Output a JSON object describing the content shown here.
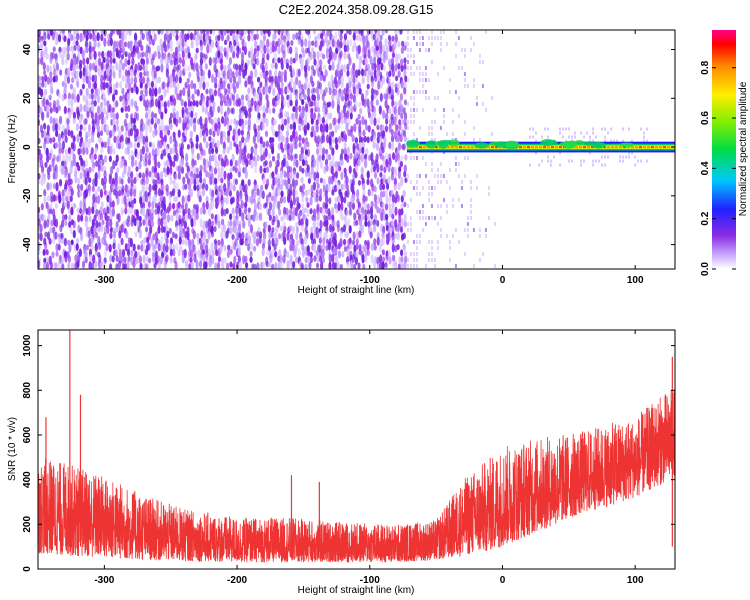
{
  "figure_title": "C2E2.2024.358.09.28.G15",
  "chart_data": [
    {
      "type": "heatmap",
      "title": "C2E2.2024.358.09.28.G15",
      "xlabel": "Height of straight line (km)",
      "ylabel": "Frequency (Hz)",
      "xlim": [
        -350,
        130
      ],
      "ylim": [
        -50,
        48
      ],
      "x_ticks": [
        -300,
        -200,
        -100,
        0,
        100
      ],
      "x_tick_labels": [
        "-300",
        "-200",
        "-100",
        "0",
        "100"
      ],
      "y_ticks": [
        -40,
        -20,
        0,
        20,
        40
      ],
      "y_tick_labels": [
        "-40",
        "-20",
        "0",
        "20",
        "40"
      ],
      "colorbar": {
        "label": "Normalized spectral amplitude",
        "range": [
          0,
          0.95
        ],
        "ticks": [
          0.0,
          0.2,
          0.4,
          0.6,
          0.8
        ],
        "tick_labels": [
          "0.0",
          "0.2",
          "0.4",
          "0.6",
          "0.8"
        ],
        "colormap": "rainbow (violet to red)"
      },
      "regions": [
        {
          "x": [
            -350,
            -72
          ],
          "freq": [
            -50,
            48
          ],
          "amplitude_range": [
            0.0,
            0.15
          ]
        },
        {
          "x": [
            -72,
            0
          ],
          "freq": [
            -50,
            48
          ],
          "amplitude_range": [
            0.0,
            0.05
          ]
        },
        {
          "x": [
            -72,
            130
          ],
          "freq": [
            -2,
            2
          ],
          "amplitude_range": [
            0.3,
            0.95
          ]
        }
      ],
      "grid": false
    },
    {
      "type": "line",
      "xlabel": "Height of straight line (km)",
      "ylabel": "SNR (10 * v/v)",
      "xlim": [
        -350,
        130
      ],
      "ylim": [
        0,
        1070
      ],
      "x_ticks": [
        -300,
        -200,
        -100,
        0,
        100
      ],
      "x_tick_labels": [
        "-300",
        "-200",
        "-100",
        "0",
        "100"
      ],
      "y_ticks": [
        0,
        200,
        400,
        600,
        800,
        1000
      ],
      "y_tick_labels": [
        "0",
        "200",
        "400",
        "600",
        "800",
        "1000"
      ],
      "series_color": "#ee3333",
      "envelope": {
        "x": [
          -350,
          -330,
          -300,
          -270,
          -240,
          -200,
          -160,
          -120,
          -80,
          -50,
          -30,
          -10,
          0,
          20,
          40,
          60,
          80,
          100,
          120,
          130
        ],
        "lower": [
          70,
          60,
          50,
          40,
          35,
          30,
          30,
          30,
          30,
          40,
          60,
          80,
          100,
          150,
          200,
          250,
          280,
          320,
          380,
          420
        ],
        "upper": [
          500,
          480,
          420,
          330,
          270,
          230,
          230,
          210,
          200,
          220,
          400,
          500,
          550,
          580,
          600,
          620,
          650,
          680,
          780,
          820
        ]
      },
      "spikes": [
        {
          "x": -326,
          "y": 1070
        },
        {
          "x": -318,
          "y": 780
        },
        {
          "x": -344,
          "y": 680
        },
        {
          "x": -159,
          "y": 420
        },
        {
          "x": -138,
          "y": 390
        },
        {
          "x": 128,
          "y": 950
        }
      ],
      "grid": false
    }
  ]
}
